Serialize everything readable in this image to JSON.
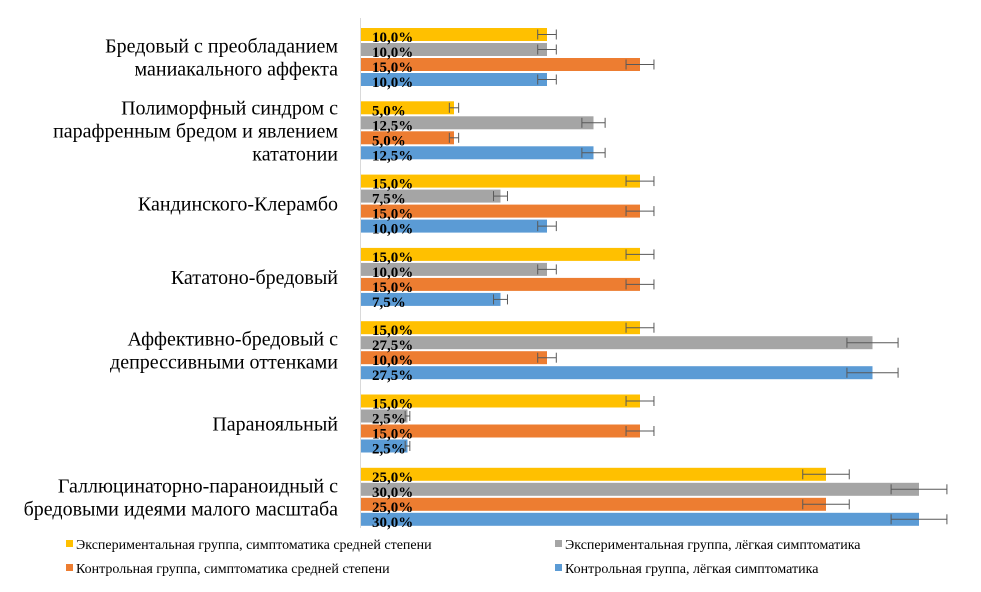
{
  "chart_data": {
    "type": "bar",
    "orientation": "horizontal",
    "title": "",
    "xlabel": "",
    "ylabel": "",
    "xlim": [
      0,
      32
    ],
    "grid": false,
    "legend_position": "bottom",
    "value_format": "percent-comma",
    "categories": [
      [
        "Бредовый с преобладанием",
        "маниакального аффекта"
      ],
      [
        "Полиморфный синдром с",
        "парафренным  бредом и явлением",
        "кататонии"
      ],
      [
        "Кандинского-Клерамбо"
      ],
      [
        "Кататоно-бредовый"
      ],
      [
        "Аффективно-бредовый с",
        "депрессивными  оттенками"
      ],
      [
        "Паранояльный"
      ],
      [
        "Галлюцинаторно-параноидный  с",
        "бредовыми идеями малого масштаба"
      ]
    ],
    "series": [
      {
        "name": "Экспериментальная  группа,  симптоматика  средней степени",
        "color": "#FFC000",
        "values": [
          10.0,
          5.0,
          15.0,
          15.0,
          15.0,
          15.0,
          25.0
        ],
        "labels": [
          "10,0%",
          "5,0%",
          "15,0%",
          "15,0%",
          "15,0%",
          "15,0%",
          "25,0%"
        ]
      },
      {
        "name": "Экспериментальная  группа,  лёгкая симптоматика",
        "color": "#A5A5A5",
        "values": [
          10.0,
          12.5,
          7.5,
          10.0,
          27.5,
          2.5,
          30.0
        ],
        "labels": [
          "10,0%",
          "12,5%",
          "7,5%",
          "10,0%",
          "27,5%",
          "2,5%",
          "30,0%"
        ]
      },
      {
        "name": "Контрольная группа,  симптоматика  средней степени",
        "color": "#ED7D31",
        "values": [
          15.0,
          5.0,
          15.0,
          15.0,
          10.0,
          15.0,
          25.0
        ],
        "labels": [
          "15,0%",
          "5,0%",
          "15,0%",
          "15,0%",
          "10,0%",
          "15,0%",
          "25,0%"
        ]
      },
      {
        "name": "Контрольная группа,  лёгкая симптоматика",
        "color": "#5B9BD5",
        "values": [
          10.0,
          12.5,
          10.0,
          7.5,
          27.5,
          2.5,
          30.0
        ],
        "labels": [
          "10,0%",
          "12,5%",
          "10,0%",
          "7,5%",
          "27,5%",
          "2,5%",
          "30,0%"
        ]
      }
    ],
    "error_bars": {
      "type": "percentage",
      "value": 5
    }
  }
}
